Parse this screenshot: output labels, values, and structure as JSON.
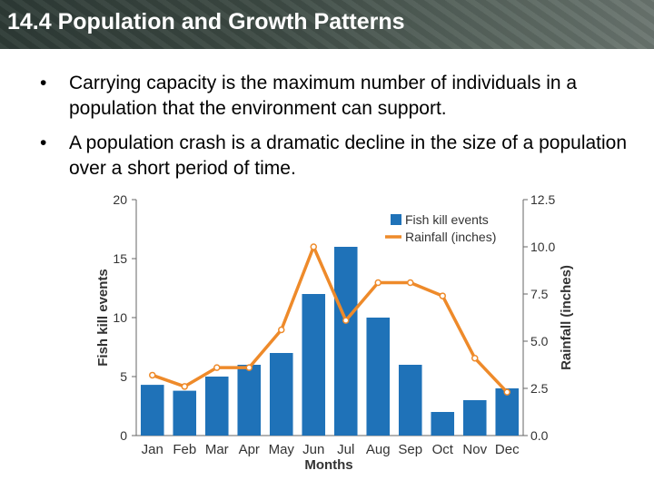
{
  "header": {
    "title": "14.4 Population and Growth Patterns"
  },
  "bullets": [
    {
      "symbol": "•",
      "text": "Carrying capacity is the maximum number of individuals in a population that the environment can support."
    },
    {
      "symbol": "•",
      "text": "A population crash is a dramatic decline in the size of a population over a short period of time."
    }
  ],
  "chart_data": {
    "type": "bar",
    "categories": [
      "Jan",
      "Feb",
      "Mar",
      "Apr",
      "May",
      "Jun",
      "Jul",
      "Aug",
      "Sep",
      "Oct",
      "Nov",
      "Dec"
    ],
    "series": [
      {
        "name": "Fish kill events",
        "kind": "bar",
        "axis": "left",
        "color": "#1f72b8",
        "values": [
          4.3,
          3.8,
          5.0,
          6.0,
          7.0,
          12.0,
          16.0,
          10.0,
          6.0,
          2.0,
          3.0,
          4.0
        ]
      },
      {
        "name": "Rainfall (inches)",
        "kind": "line",
        "axis": "right",
        "color": "#ee8a2a",
        "values": [
          3.2,
          2.6,
          3.6,
          3.6,
          5.6,
          10.0,
          6.1,
          8.1,
          8.1,
          7.4,
          4.1,
          2.3
        ]
      }
    ],
    "xlabel": "Months",
    "ylabel": "Fish kill events",
    "ylabel_right": "Rainfall (inches)",
    "ylim": [
      0,
      20
    ],
    "ylim_right": [
      0.0,
      12.5
    ],
    "yticks": [
      "0",
      "5",
      "10",
      "15",
      "20"
    ],
    "yticks_right": [
      "0.0",
      "2.5",
      "5.0",
      "7.5",
      "10.0",
      "12.5"
    ],
    "legend": "top-right",
    "grid": false
  }
}
